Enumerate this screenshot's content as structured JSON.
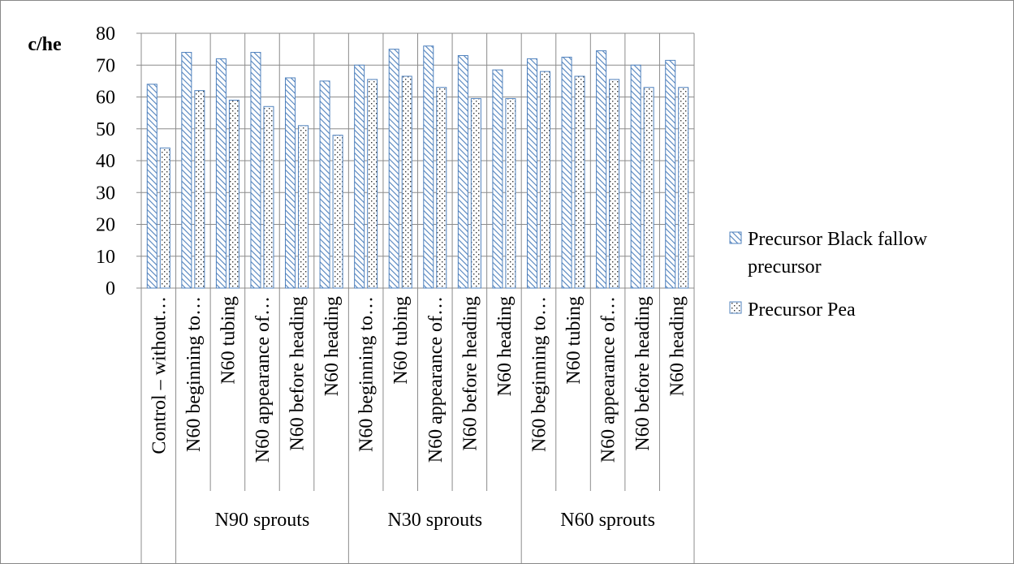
{
  "chart_data": {
    "type": "bar",
    "ylabel": "c/he",
    "xlabel": "",
    "ylim": [
      0,
      80
    ],
    "ytick_step": 10,
    "grid": true,
    "legend_position": "right",
    "categories": [
      "Control – without…",
      "N60 beginning to…",
      "N60 tubing",
      "N60 appearance of…",
      "N60 before heading",
      "N60 heading",
      "N60 beginning to…",
      "N60 tubing",
      "N60 appearance of…",
      "N60 before heading",
      "N60 heading",
      "N60 beginning to…",
      "N60 tubing",
      "N60 appearance of…",
      "N60 before heading",
      "N60 heading"
    ],
    "groups": [
      {
        "label": "",
        "start": 0,
        "count": 1
      },
      {
        "label": "N90 sprouts",
        "start": 1,
        "count": 5
      },
      {
        "label": "N30 sprouts",
        "start": 6,
        "count": 5
      },
      {
        "label": "N60 sprouts",
        "start": 11,
        "count": 5
      }
    ],
    "series": [
      {
        "name_line1": "Precursor  Black fallow",
        "name_line2": "precursor",
        "pattern": "diagonal",
        "color": "#4F81BD",
        "values": [
          64,
          74,
          72,
          74,
          66,
          65,
          70,
          75,
          76,
          73,
          68.5,
          72,
          72.5,
          74.5,
          70,
          71.5
        ]
      },
      {
        "name_line1": "Precursor  Pea",
        "pattern": "dots",
        "color": "#4F81BD",
        "values": [
          44,
          62,
          59,
          57,
          51,
          48,
          65.5,
          66.5,
          63,
          59.5,
          59.5,
          68,
          66.5,
          65.5,
          63,
          63
        ]
      }
    ]
  }
}
